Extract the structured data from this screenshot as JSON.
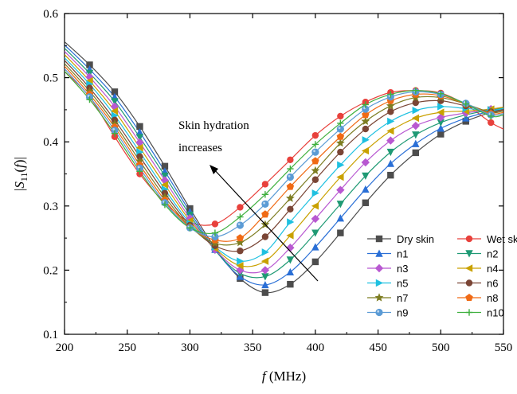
{
  "chart_data": {
    "type": "line",
    "xlabel_italic": "f",
    "xlabel_rest": " (MHz)",
    "ylabel_parts": [
      "|",
      "S",
      "11",
      "(",
      "f",
      ")|"
    ],
    "xlim": [
      200,
      550
    ],
    "ylim": [
      0.1,
      0.6
    ],
    "x_ticks": [
      "200",
      "250",
      "300",
      "350",
      "400",
      "450",
      "500",
      "550"
    ],
    "y_ticks": [
      "0.1",
      "0.2",
      "0.3",
      "0.4",
      "0.5",
      "0.6"
    ],
    "annotation": [
      "Skin hydration",
      "increases"
    ],
    "legend_position": "bottom-right",
    "x": [
      200,
      220,
      240,
      260,
      280,
      300,
      320,
      340,
      360,
      380,
      400,
      420,
      440,
      460,
      480,
      500,
      520,
      540,
      550
    ],
    "series": [
      {
        "name": "Dry skin",
        "color": "#4d4d4d",
        "marker": "square",
        "values": [
          0.556,
          0.52,
          0.478,
          0.424,
          0.362,
          0.296,
          0.235,
          0.187,
          0.165,
          0.178,
          0.213,
          0.258,
          0.305,
          0.348,
          0.383,
          0.412,
          0.432,
          0.446,
          0.451
        ]
      },
      {
        "name": "Wet skin",
        "color": "#e8413c",
        "marker": "circle",
        "values": [
          0.51,
          0.47,
          0.408,
          0.35,
          0.305,
          0.275,
          0.272,
          0.298,
          0.334,
          0.372,
          0.41,
          0.44,
          0.462,
          0.477,
          0.48,
          0.476,
          0.458,
          0.43,
          0.42
        ]
      },
      {
        "name": "n1",
        "color": "#2a6fd6",
        "marker": "triangle-up",
        "values": [
          0.551,
          0.513,
          0.47,
          0.415,
          0.354,
          0.291,
          0.232,
          0.19,
          0.177,
          0.197,
          0.236,
          0.281,
          0.326,
          0.366,
          0.397,
          0.421,
          0.437,
          0.448,
          0.452
        ]
      },
      {
        "name": "n2",
        "color": "#1f9a74",
        "marker": "triangle-down",
        "values": [
          0.546,
          0.507,
          0.463,
          0.407,
          0.347,
          0.286,
          0.231,
          0.195,
          0.19,
          0.216,
          0.258,
          0.303,
          0.347,
          0.384,
          0.411,
          0.43,
          0.442,
          0.45,
          0.453
        ]
      },
      {
        "name": "n3",
        "color": "#b858d1",
        "marker": "diamond",
        "values": [
          0.541,
          0.501,
          0.455,
          0.399,
          0.34,
          0.281,
          0.232,
          0.2,
          0.2,
          0.235,
          0.28,
          0.325,
          0.368,
          0.402,
          0.425,
          0.438,
          0.445,
          0.451,
          0.454
        ]
      },
      {
        "name": "n4",
        "color": "#c9a100",
        "marker": "triangle-left",
        "values": [
          0.536,
          0.495,
          0.448,
          0.391,
          0.333,
          0.277,
          0.234,
          0.207,
          0.214,
          0.254,
          0.3,
          0.345,
          0.386,
          0.417,
          0.437,
          0.446,
          0.448,
          0.451,
          0.454
        ]
      },
      {
        "name": "n5",
        "color": "#1ec0e0",
        "marker": "triangle-right",
        "values": [
          0.531,
          0.49,
          0.441,
          0.384,
          0.326,
          0.273,
          0.236,
          0.214,
          0.228,
          0.275,
          0.32,
          0.364,
          0.403,
          0.432,
          0.449,
          0.455,
          0.452,
          0.449,
          0.452
        ]
      },
      {
        "name": "n6",
        "color": "#7a4535",
        "marker": "circle",
        "values": [
          0.527,
          0.484,
          0.434,
          0.377,
          0.32,
          0.27,
          0.238,
          0.23,
          0.252,
          0.295,
          0.341,
          0.384,
          0.42,
          0.447,
          0.461,
          0.464,
          0.456,
          0.447,
          0.45
        ]
      },
      {
        "name": "n7",
        "color": "#7d7d22",
        "marker": "star",
        "values": [
          0.522,
          0.479,
          0.428,
          0.37,
          0.314,
          0.268,
          0.242,
          0.243,
          0.271,
          0.312,
          0.355,
          0.398,
          0.432,
          0.456,
          0.469,
          0.469,
          0.459,
          0.446,
          0.448
        ]
      },
      {
        "name": "n8",
        "color": "#f06a15",
        "marker": "pentagon",
        "values": [
          0.518,
          0.474,
          0.423,
          0.364,
          0.309,
          0.267,
          0.247,
          0.25,
          0.287,
          0.33,
          0.37,
          0.408,
          0.442,
          0.464,
          0.474,
          0.472,
          0.459,
          0.444,
          0.446
        ]
      },
      {
        "name": "n9",
        "color": "#5b9bd5",
        "marker": "hexagon",
        "values": [
          0.514,
          0.47,
          0.418,
          0.359,
          0.305,
          0.266,
          0.252,
          0.27,
          0.303,
          0.345,
          0.384,
          0.42,
          0.451,
          0.47,
          0.478,
          0.474,
          0.46,
          0.442,
          0.444
        ]
      },
      {
        "name": "n10",
        "color": "#3fb03f",
        "marker": "plus",
        "values": [
          0.51,
          0.466,
          0.413,
          0.354,
          0.302,
          0.266,
          0.258,
          0.283,
          0.318,
          0.358,
          0.396,
          0.429,
          0.458,
          0.474,
          0.48,
          0.475,
          0.459,
          0.44,
          0.442
        ]
      }
    ]
  }
}
